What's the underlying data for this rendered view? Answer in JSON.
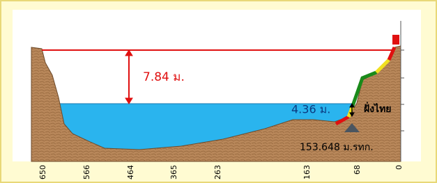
{
  "labels": {
    "freeboard": "7.84 ม.",
    "water_depth": "4.36 ม.",
    "bank": "ฝั่งไทย",
    "bed_level": "153.648 ม.รทก."
  },
  "x_axis_labels": [
    "650",
    "566",
    "464",
    "365",
    "263",
    "163",
    "68",
    "0"
  ]
}
